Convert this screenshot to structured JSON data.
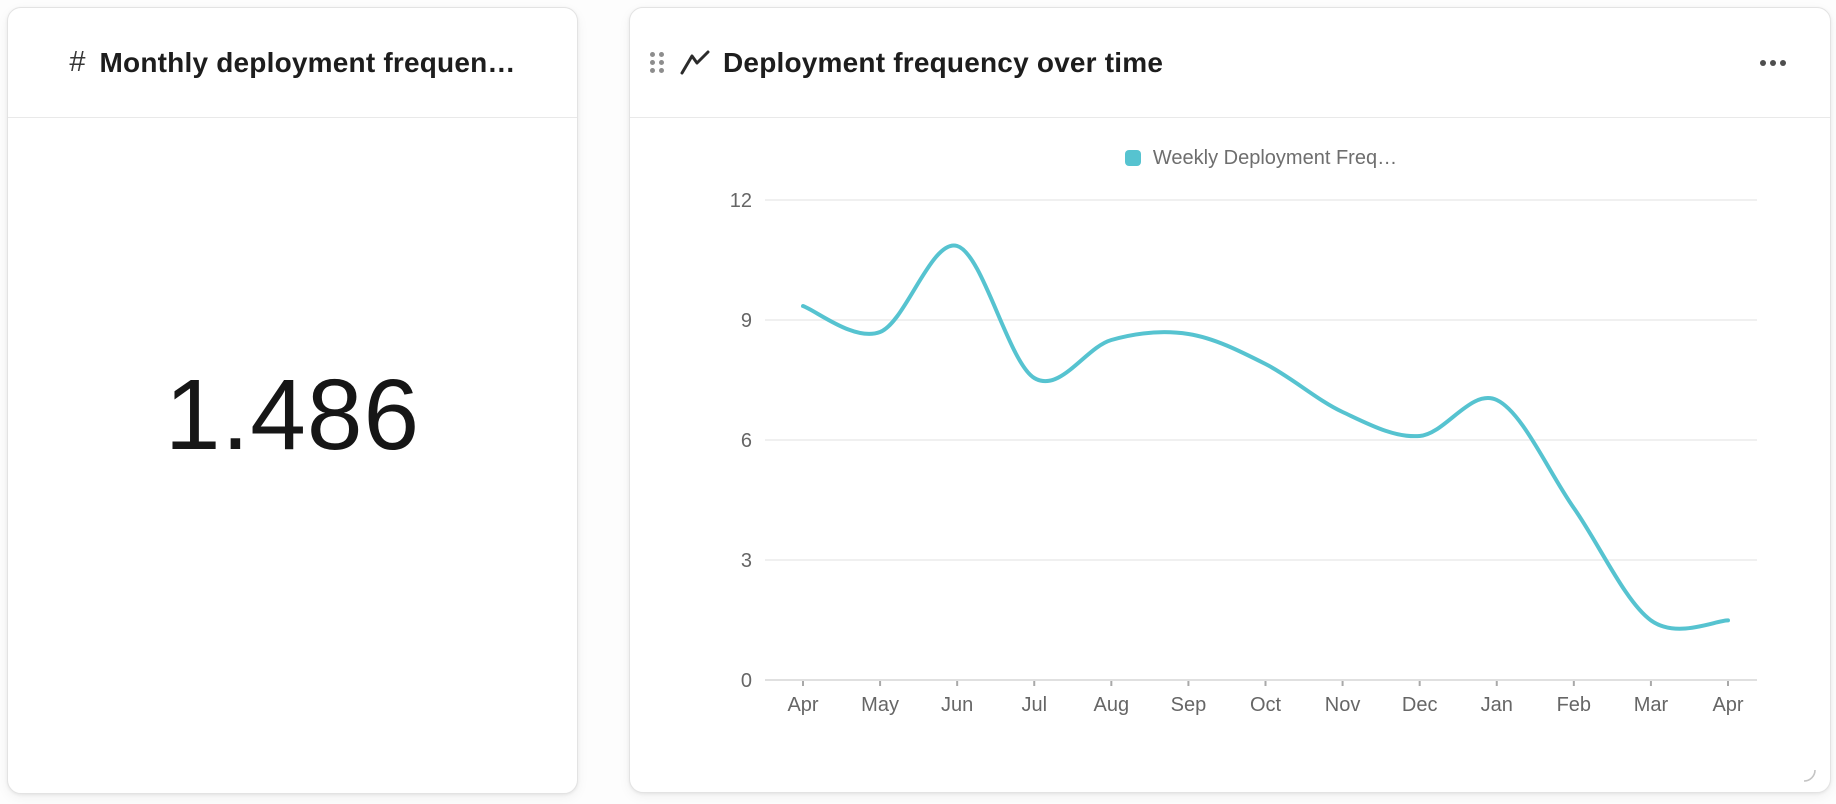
{
  "kpi_card": {
    "icon": "#",
    "title": "Monthly deployment frequen…",
    "value": "1.486"
  },
  "chart_card": {
    "title": "Deployment frequency over time"
  },
  "chart_data": {
    "type": "line",
    "title": "Deployment frequency over time",
    "x": [
      "Apr",
      "May",
      "Jun",
      "Jul",
      "Aug",
      "Sep",
      "Oct",
      "Nov",
      "Dec",
      "Jan",
      "Feb",
      "Mar",
      "Apr"
    ],
    "series": [
      {
        "name": "Weekly Deployment Freq…",
        "color": "#56c3d0",
        "values": [
          9.35,
          8.7,
          10.85,
          7.55,
          8.5,
          8.65,
          7.9,
          6.7,
          6.1,
          7.0,
          4.3,
          1.49,
          1.49
        ]
      }
    ],
    "ylim": [
      0,
      12
    ],
    "yticks": [
      0,
      3,
      6,
      9,
      12
    ],
    "xlabel": "",
    "ylabel": "",
    "grid": "horizontal",
    "legend_position": "top",
    "smooth": true
  },
  "colors": {
    "accent": "#56c3d0",
    "grid_line": "#ececec",
    "axis_line": "#e0e0e0",
    "tick_mark": "#a9a9a9",
    "axis_text": "#666666",
    "title_text": "#1d1d1d"
  }
}
